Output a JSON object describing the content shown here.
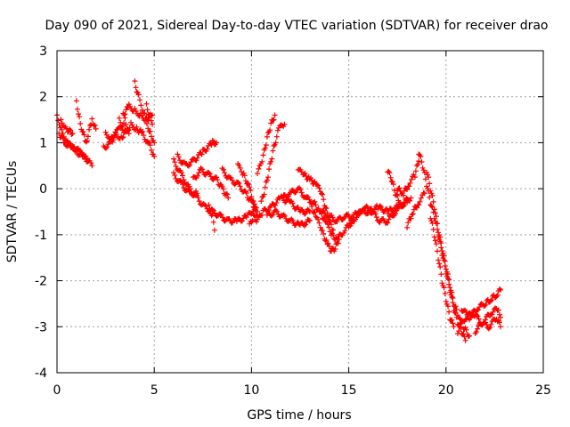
{
  "chart_data": {
    "type": "scatter",
    "title": "Day 090 of 2021, Sidereal Day-to-day VTEC variation (SDTVAR) for receiver drao",
    "xlabel": "GPS time / hours",
    "ylabel": "SDTVAR / TECUs",
    "xlim": [
      0,
      25
    ],
    "ylim": [
      -4,
      3
    ],
    "xticks": [
      "0",
      "5",
      "10",
      "15",
      "20",
      "25"
    ],
    "xtick_values": [
      0,
      5,
      10,
      15,
      20,
      25
    ],
    "yticks": [
      "-4",
      "-3",
      "-2",
      "-1",
      "0",
      "1",
      "2",
      "3"
    ],
    "ytick_values": [
      -4,
      -3,
      -2,
      -1,
      0,
      1,
      2,
      3
    ],
    "grid": true,
    "marker": "+",
    "marker_color": "#ff0000",
    "series": [
      {
        "name": "SDTVAR",
        "tracks": [
          [
            [
              0.0,
              1.6
            ],
            [
              0.3,
              1.2
            ],
            [
              0.6,
              1.0
            ],
            [
              1.0,
              0.8
            ],
            [
              1.4,
              0.7
            ],
            [
              1.8,
              0.5
            ]
          ],
          [
            [
              0.1,
              1.2
            ],
            [
              0.4,
              1.0
            ],
            [
              0.8,
              0.9
            ],
            [
              1.2,
              0.8
            ],
            [
              1.6,
              0.6
            ]
          ],
          [
            [
              0.2,
              1.5
            ],
            [
              0.5,
              1.3
            ],
            [
              0.8,
              1.2
            ]
          ],
          [
            [
              1.0,
              1.9
            ],
            [
              1.2,
              1.4
            ],
            [
              1.5,
              1.0
            ],
            [
              1.8,
              1.5
            ],
            [
              2.0,
              1.3
            ]
          ],
          [
            [
              2.4,
              0.9
            ],
            [
              2.8,
              1.0
            ],
            [
              3.0,
              1.2
            ],
            [
              3.3,
              1.1
            ],
            [
              3.6,
              1.3
            ]
          ],
          [
            [
              2.5,
              1.2
            ],
            [
              2.8,
              1.1
            ],
            [
              3.2,
              1.3
            ],
            [
              3.5,
              1.5
            ],
            [
              3.7,
              1.2
            ]
          ],
          [
            [
              3.2,
              1.5
            ],
            [
              3.5,
              1.2
            ],
            [
              3.8,
              1.4
            ],
            [
              4.1,
              1.3
            ],
            [
              4.4,
              1.2
            ],
            [
              4.8,
              0.9
            ],
            [
              5.0,
              0.7
            ]
          ],
          [
            [
              3.4,
              1.6
            ],
            [
              3.7,
              1.8
            ],
            [
              4.0,
              1.7
            ],
            [
              4.3,
              1.6
            ],
            [
              4.6,
              1.5
            ],
            [
              4.9,
              1.6
            ]
          ],
          [
            [
              4.0,
              2.3
            ],
            [
              4.2,
              2.0
            ],
            [
              4.5,
              1.6
            ],
            [
              4.8,
              1.2
            ],
            [
              5.0,
              1.0
            ]
          ],
          [
            [
              4.6,
              1.8
            ],
            [
              4.9,
              1.4
            ]
          ],
          [
            [
              6.0,
              0.6
            ],
            [
              6.4,
              0.3
            ],
            [
              6.8,
              0.0
            ],
            [
              7.2,
              -0.2
            ],
            [
              7.6,
              -0.4
            ],
            [
              8.0,
              -0.5
            ],
            [
              8.4,
              -0.6
            ],
            [
              8.8,
              -0.7
            ],
            [
              9.3,
              -0.7
            ],
            [
              9.8,
              -0.6
            ],
            [
              10.2,
              -0.4
            ]
          ],
          [
            [
              6.0,
              0.3
            ],
            [
              6.4,
              0.1
            ],
            [
              6.8,
              -0.1
            ],
            [
              7.2,
              -0.1
            ]
          ],
          [
            [
              6.2,
              0.7
            ],
            [
              6.6,
              0.5
            ],
            [
              7.0,
              0.6
            ],
            [
              7.5,
              0.8
            ],
            [
              8.0,
              1.0
            ],
            [
              8.2,
              1.0
            ]
          ],
          [
            [
              7.0,
              0.2
            ],
            [
              7.4,
              0.4
            ],
            [
              7.8,
              0.3
            ],
            [
              8.2,
              0.2
            ],
            [
              8.5,
              0.0
            ],
            [
              8.8,
              -0.2
            ]
          ],
          [
            [
              7.8,
              -0.4
            ],
            [
              8.0,
              -0.6
            ],
            [
              8.1,
              -0.9
            ]
          ],
          [
            [
              8.5,
              0.4
            ],
            [
              8.9,
              0.2
            ],
            [
              9.3,
              0.1
            ],
            [
              9.7,
              -0.1
            ],
            [
              10.0,
              -0.3
            ],
            [
              10.3,
              -0.5
            ]
          ],
          [
            [
              9.3,
              0.5
            ],
            [
              9.6,
              0.3
            ],
            [
              9.9,
              0.0
            ],
            [
              10.1,
              -0.3
            ],
            [
              10.3,
              -0.6
            ]
          ],
          [
            [
              9.9,
              -0.8
            ],
            [
              10.1,
              -0.6
            ],
            [
              10.3,
              -0.7
            ],
            [
              10.6,
              -0.5
            ],
            [
              11.0,
              -0.4
            ],
            [
              11.5,
              -0.2
            ],
            [
              12.0,
              -0.3
            ],
            [
              12.5,
              -0.5
            ],
            [
              13.0,
              -0.5
            ]
          ],
          [
            [
              10.3,
              0.3
            ],
            [
              10.6,
              0.7
            ],
            [
              10.8,
              1.1
            ],
            [
              11.0,
              1.4
            ],
            [
              11.2,
              1.6
            ]
          ],
          [
            [
              10.5,
              -0.3
            ],
            [
              10.7,
              0.0
            ],
            [
              10.9,
              0.4
            ],
            [
              11.1,
              0.8
            ],
            [
              11.4,
              1.3
            ],
            [
              11.7,
              1.4
            ]
          ],
          [
            [
              10.8,
              -0.6
            ],
            [
              11.2,
              -0.5
            ],
            [
              11.6,
              -0.6
            ],
            [
              12.0,
              -0.7
            ],
            [
              12.5,
              -0.8
            ],
            [
              13.0,
              -0.7
            ]
          ],
          [
            [
              11.6,
              -0.2
            ],
            [
              12.0,
              -0.1
            ],
            [
              12.4,
              0.0
            ],
            [
              12.8,
              -0.2
            ],
            [
              13.2,
              -0.3
            ],
            [
              13.5,
              -0.5
            ],
            [
              13.8,
              -0.7
            ],
            [
              14.1,
              -1.0
            ],
            [
              14.4,
              -1.1
            ],
            [
              14.8,
              -0.9
            ],
            [
              15.2,
              -0.7
            ]
          ],
          [
            [
              12.4,
              0.4
            ],
            [
              12.7,
              0.3
            ],
            [
              13.0,
              0.2
            ],
            [
              13.3,
              0.1
            ],
            [
              13.6,
              -0.1
            ],
            [
              13.8,
              -0.4
            ],
            [
              14.0,
              -0.7
            ],
            [
              14.2,
              -0.9
            ]
          ],
          [
            [
              13.0,
              -0.3
            ],
            [
              13.3,
              -0.6
            ],
            [
              13.6,
              -0.9
            ],
            [
              13.9,
              -1.2
            ],
            [
              14.1,
              -1.35
            ],
            [
              14.3,
              -1.3
            ],
            [
              14.5,
              -1.1
            ]
          ],
          [
            [
              13.6,
              -0.5
            ],
            [
              14.0,
              -0.6
            ],
            [
              14.4,
              -0.7
            ],
            [
              14.8,
              -0.6
            ],
            [
              15.2,
              -0.6
            ],
            [
              15.6,
              -0.5
            ],
            [
              16.0,
              -0.5
            ],
            [
              16.5,
              -0.4
            ],
            [
              17.0,
              -0.5
            ],
            [
              17.5,
              -0.4
            ],
            [
              18.0,
              -0.3
            ]
          ],
          [
            [
              15.0,
              -0.8
            ],
            [
              15.4,
              -0.6
            ],
            [
              15.8,
              -0.4
            ],
            [
              16.2,
              -0.5
            ],
            [
              16.6,
              -0.7
            ],
            [
              17.0,
              -0.7
            ],
            [
              17.4,
              -0.5
            ],
            [
              17.8,
              -0.3
            ],
            [
              18.2,
              -0.2
            ]
          ],
          [
            [
              17.0,
              0.4
            ],
            [
              17.2,
              0.2
            ],
            [
              17.4,
              -0.1
            ],
            [
              17.6,
              -0.3
            ]
          ],
          [
            [
              17.5,
              0.0
            ],
            [
              17.8,
              -0.1
            ],
            [
              18.1,
              0.1
            ],
            [
              18.4,
              0.3
            ],
            [
              18.6,
              0.6
            ]
          ],
          [
            [
              18.0,
              -0.8
            ],
            [
              18.3,
              -0.5
            ],
            [
              18.6,
              -0.3
            ],
            [
              18.9,
              -0.1
            ]
          ],
          [
            [
              18.6,
              0.8
            ],
            [
              18.8,
              0.5
            ],
            [
              19.0,
              0.1
            ],
            [
              19.2,
              -0.3
            ],
            [
              19.4,
              -0.6
            ],
            [
              19.6,
              -1.0
            ],
            [
              19.8,
              -1.4
            ],
            [
              20.0,
              -1.8
            ],
            [
              20.2,
              -2.2
            ],
            [
              20.4,
              -2.6
            ],
            [
              20.6,
              -2.9
            ],
            [
              20.8,
              -3.1
            ],
            [
              21.0,
              -3.3
            ]
          ],
          [
            [
              19.0,
              0.4
            ],
            [
              19.2,
              0.0
            ],
            [
              19.4,
              -0.4
            ],
            [
              19.6,
              -0.9
            ],
            [
              19.8,
              -1.3
            ],
            [
              20.0,
              -1.7
            ],
            [
              20.2,
              -2.1
            ],
            [
              20.4,
              -2.5
            ],
            [
              20.6,
              -2.7
            ],
            [
              20.9,
              -3.0
            ],
            [
              21.2,
              -3.2
            ]
          ],
          [
            [
              19.2,
              -0.6
            ],
            [
              19.4,
              -1.0
            ],
            [
              19.6,
              -1.5
            ],
            [
              19.8,
              -2.0
            ],
            [
              20.0,
              -2.4
            ],
            [
              20.2,
              -2.8
            ],
            [
              20.4,
              -3.0
            ]
          ],
          [
            [
              20.6,
              -3.1
            ],
            [
              21.0,
              -2.8
            ],
            [
              21.4,
              -2.7
            ],
            [
              21.8,
              -2.9
            ],
            [
              22.2,
              -3.0
            ],
            [
              22.6,
              -2.8
            ],
            [
              22.8,
              -3.0
            ]
          ],
          [
            [
              20.8,
              -2.6
            ],
            [
              21.2,
              -2.8
            ],
            [
              21.6,
              -2.6
            ],
            [
              22.0,
              -2.5
            ],
            [
              22.3,
              -2.4
            ],
            [
              22.6,
              -2.3
            ],
            [
              22.8,
              -2.2
            ]
          ],
          [
            [
              21.5,
              -3.1
            ],
            [
              21.9,
              -2.9
            ],
            [
              22.3,
              -2.7
            ],
            [
              22.7,
              -2.6
            ],
            [
              22.8,
              -2.8
            ]
          ]
        ]
      }
    ]
  }
}
